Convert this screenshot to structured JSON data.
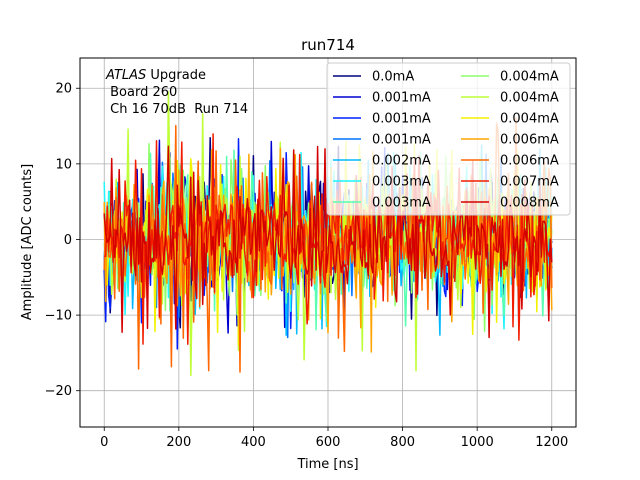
{
  "chart_data": {
    "type": "line",
    "title": "run714",
    "xlabel": "Time [ns]",
    "ylabel": "Amplitude [ADC counts]",
    "xlim": [
      -65,
      1265
    ],
    "ylim": [
      -24.8,
      24
    ],
    "xticks": [
      0,
      200,
      400,
      600,
      800,
      1000,
      1200
    ],
    "xtick_labels": [
      "0",
      "200",
      "400",
      "600",
      "800",
      "1000",
      "1200"
    ],
    "yticks": [
      -20,
      -10,
      0,
      10,
      20
    ],
    "ytick_labels": [
      "−20",
      "−10",
      "0",
      "10",
      "20"
    ],
    "grid": true,
    "legend_position": "top-right",
    "legend_columns": 2,
    "annotation": {
      "experiment": "ATLAS",
      "experiment_suffix": " Upgrade",
      "line2": " Board 260",
      "line3": " Ch 16 70dB  Run 714"
    },
    "x_range": [
      0,
      1200
    ],
    "series": [
      {
        "name": "0.0mA",
        "color": "#00007f",
        "amplitude": 3.2,
        "spike": 13.5
      },
      {
        "name": "0.001mA",
        "color": "#0000d0",
        "amplitude": 3.3,
        "spike": 14
      },
      {
        "name": "0.001mA",
        "color": "#0020ff",
        "amplitude": 3.3,
        "spike": 14.5
      },
      {
        "name": "0.001mA",
        "color": "#0074ff",
        "amplitude": 3.3,
        "spike": 13
      },
      {
        "name": "0.002mA",
        "color": "#00b8ff",
        "amplitude": 3.4,
        "spike": 13
      },
      {
        "name": "0.003mA",
        "color": "#1ff5ff",
        "amplitude": 3.4,
        "spike": 12
      },
      {
        "name": "0.003mA",
        "color": "#59ffb0",
        "amplitude": 3.4,
        "spike": 12
      },
      {
        "name": "0.004mA",
        "color": "#8cff6a",
        "amplitude": 3.5,
        "spike": 13
      },
      {
        "name": "0.004mA",
        "color": "#bfff37",
        "amplitude": 4.2,
        "spike": 20
      },
      {
        "name": "0.004mA",
        "color": "#f2f200",
        "amplitude": 3.6,
        "spike": 14
      },
      {
        "name": "0.006mA",
        "color": "#ffa300",
        "amplitude": 3.7,
        "spike": 15
      },
      {
        "name": "0.006mA",
        "color": "#ff6700",
        "amplitude": 4.0,
        "spike": 19
      },
      {
        "name": "0.007mA",
        "color": "#f21d00",
        "amplitude": 3.8,
        "spike": 14
      },
      {
        "name": "0.008mA",
        "color": "#d40000",
        "amplitude": 3.6,
        "spike": 13
      }
    ]
  }
}
